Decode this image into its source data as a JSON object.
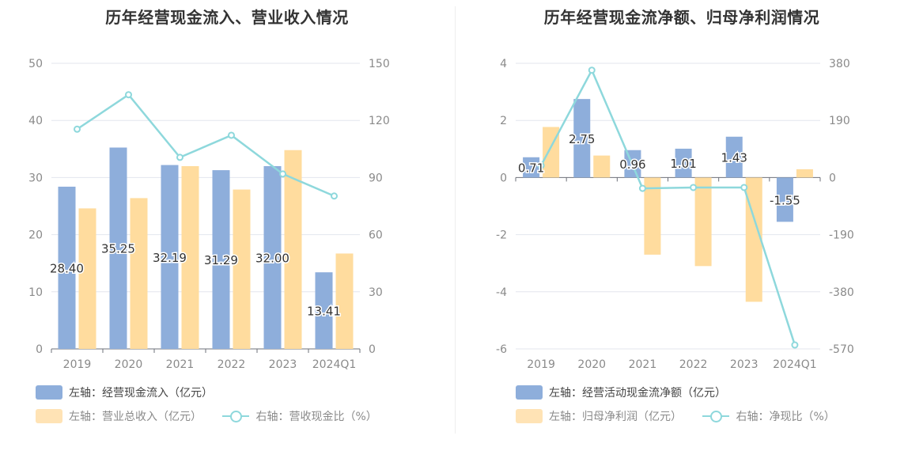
{
  "colors": {
    "bar_blue": "#8eaedb",
    "bar_orange": "#ffdc9e",
    "line": "#8ed8dc",
    "axis_text": "#8a8a8a",
    "grid": "#e3e6ee"
  },
  "chart_data": [
    {
      "type": "bar",
      "title": "历年经营现金流入、营业收入情况",
      "categories": [
        "2019",
        "2020",
        "2021",
        "2022",
        "2023",
        "2024Q1"
      ],
      "ylim_left": [
        0,
        50
      ],
      "ylim_right": [
        0,
        150
      ],
      "left_ticks": [
        "50",
        "40",
        "30",
        "20",
        "10",
        "0"
      ],
      "right_ticks": [
        "150",
        "120",
        "90",
        "60",
        "30",
        "0"
      ],
      "series": [
        {
          "name": "左轴：经营现金流入（亿元）",
          "axis": "left",
          "kind": "bar",
          "color": "#8eaedb",
          "values": [
            28.4,
            35.25,
            32.19,
            31.29,
            32.0,
            13.41
          ],
          "labels": [
            "28.40",
            "35.25",
            "32.19",
            "31.29",
            "32.00",
            "13.41"
          ]
        },
        {
          "name": "左轴：营业总收入（亿元）",
          "axis": "left",
          "kind": "bar",
          "color": "#ffdc9e",
          "values": [
            24.6,
            26.4,
            32.0,
            27.9,
            34.8,
            16.7
          ]
        },
        {
          "name": "右轴：营收现金比（%）",
          "axis": "right",
          "kind": "line",
          "color": "#8ed8dc",
          "values": [
            115.4,
            133.5,
            100.6,
            112.2,
            91.9,
            80.3
          ]
        }
      ]
    },
    {
      "type": "bar",
      "title": "历年经营现金流净额、归母净利润情况",
      "categories": [
        "2019",
        "2020",
        "2021",
        "2022",
        "2023",
        "2024Q1"
      ],
      "ylim_left": [
        -6,
        4
      ],
      "ylim_right": [
        -570,
        380
      ],
      "left_ticks": [
        "4",
        "2",
        "0",
        "-2",
        "-4",
        "-6"
      ],
      "right_ticks": [
        "380",
        "190",
        "0",
        "-190",
        "-380",
        "-570"
      ],
      "series": [
        {
          "name": "左轴：经营活动现金流净额（亿元）",
          "axis": "left",
          "kind": "bar",
          "color": "#8eaedb",
          "values": [
            0.71,
            2.75,
            0.96,
            1.01,
            1.43,
            -1.55
          ],
          "labels": [
            "0.71",
            "2.75",
            "0.96",
            "1.01",
            "1.43",
            "-1.55"
          ]
        },
        {
          "name": "左轴：归母净利润（亿元）",
          "axis": "left",
          "kind": "bar",
          "color": "#ffdc9e",
          "values": [
            1.77,
            0.77,
            -2.7,
            -3.1,
            -4.35,
            0.29
          ]
        },
        {
          "name": "右轴：净现比（%）",
          "axis": "right",
          "kind": "line",
          "color": "#8ed8dc",
          "values": [
            40,
            357,
            -36,
            -33,
            -33,
            -557
          ]
        }
      ]
    }
  ]
}
